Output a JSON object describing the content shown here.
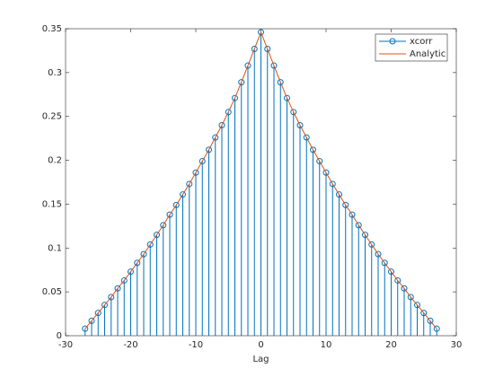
{
  "chart_data": {
    "type": "stem",
    "x_label": "Lag",
    "x": [
      -27,
      -26,
      -25,
      -24,
      -23,
      -22,
      -21,
      -20,
      -19,
      -18,
      -17,
      -16,
      -15,
      -14,
      -13,
      -12,
      -11,
      -10,
      -9,
      -8,
      -7,
      -6,
      -5,
      -4,
      -3,
      -2,
      -1,
      0,
      1,
      2,
      3,
      4,
      5,
      6,
      7,
      8,
      9,
      10,
      11,
      12,
      13,
      14,
      15,
      16,
      17,
      18,
      19,
      20,
      21,
      22,
      23,
      24,
      25,
      26,
      27
    ],
    "series": [
      {
        "name": "xcorr",
        "color": "#0072bd",
        "style": "stem",
        "values": [
          0.008,
          0.017,
          0.026,
          0.035,
          0.044,
          0.054,
          0.063,
          0.073,
          0.083,
          0.093,
          0.104,
          0.115,
          0.126,
          0.138,
          0.149,
          0.161,
          0.173,
          0.186,
          0.199,
          0.212,
          0.226,
          0.24,
          0.255,
          0.271,
          0.289,
          0.308,
          0.327,
          0.346,
          0.327,
          0.308,
          0.289,
          0.271,
          0.255,
          0.24,
          0.226,
          0.212,
          0.199,
          0.186,
          0.173,
          0.161,
          0.149,
          0.138,
          0.126,
          0.115,
          0.104,
          0.093,
          0.083,
          0.073,
          0.063,
          0.054,
          0.044,
          0.035,
          0.026,
          0.017,
          0.008
        ]
      },
      {
        "name": "Analytic",
        "color": "#d95319",
        "style": "line",
        "values": [
          0.008,
          0.017,
          0.026,
          0.035,
          0.044,
          0.054,
          0.063,
          0.073,
          0.083,
          0.093,
          0.104,
          0.115,
          0.126,
          0.138,
          0.149,
          0.161,
          0.173,
          0.186,
          0.199,
          0.212,
          0.226,
          0.24,
          0.255,
          0.271,
          0.289,
          0.308,
          0.327,
          0.346,
          0.327,
          0.308,
          0.289,
          0.271,
          0.255,
          0.24,
          0.226,
          0.212,
          0.199,
          0.186,
          0.173,
          0.161,
          0.149,
          0.138,
          0.126,
          0.115,
          0.104,
          0.093,
          0.083,
          0.073,
          0.063,
          0.054,
          0.044,
          0.035,
          0.026,
          0.017,
          0.008
        ]
      }
    ],
    "xlim": [
      -30,
      30
    ],
    "xticks": [
      -30,
      -20,
      -10,
      0,
      10,
      20,
      30
    ],
    "ylim": [
      0,
      0.35
    ],
    "yticks": [
      0,
      0.05,
      0.1,
      0.15,
      0.2,
      0.25,
      0.3,
      0.35
    ],
    "legend": "upper right"
  }
}
